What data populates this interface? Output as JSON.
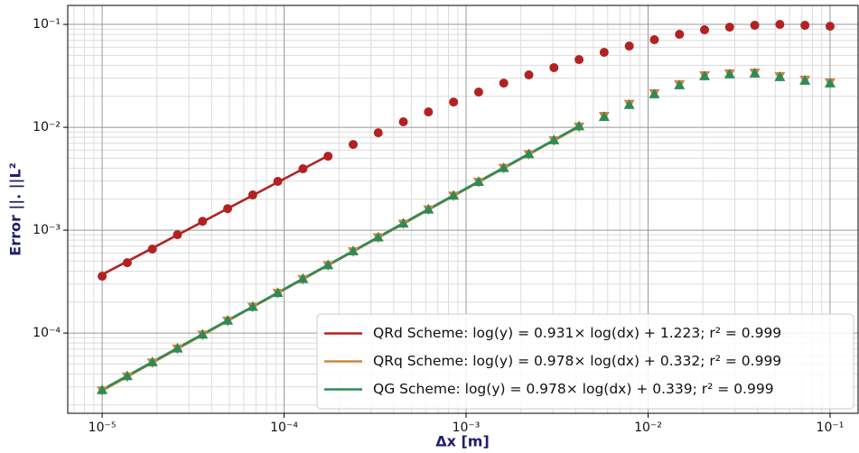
{
  "chart_data": {
    "type": "scatter_fit",
    "x_label": "Δx [m]",
    "y_label": "Error ||. ||L²",
    "log_x": true,
    "log_y": true,
    "grid": true,
    "xlim": [
      6.47e-06,
      0.1426
    ],
    "ylim": [
      1.66e-05,
      0.153
    ],
    "xticks": [
      {
        "value": 1e-05,
        "label": "10⁻⁵"
      },
      {
        "value": 0.0001,
        "label": "10⁻⁴"
      },
      {
        "value": 0.001,
        "label": "10⁻³"
      },
      {
        "value": 0.01,
        "label": "10⁻²"
      },
      {
        "value": 0.1,
        "label": "10⁻¹"
      }
    ],
    "yticks": [
      {
        "value": 0.0001,
        "label": "10⁻⁴"
      },
      {
        "value": 0.001,
        "label": "10⁻³"
      },
      {
        "value": 0.01,
        "label": "10⁻²"
      },
      {
        "value": 0.1,
        "label": "10⁻¹"
      }
    ],
    "xminorticks": [
      7e-06,
      8e-06,
      9e-06,
      2e-05,
      3e-05,
      4e-05,
      5e-05,
      6e-05,
      7e-05,
      8e-05,
      9e-05,
      0.0002,
      0.0003,
      0.0004,
      0.0005,
      0.0006,
      0.0007,
      0.0008,
      0.0009,
      0.002,
      0.003,
      0.004,
      0.005,
      0.006,
      0.007,
      0.008,
      0.009,
      0.02,
      0.03,
      0.04,
      0.05,
      0.06,
      0.07,
      0.08,
      0.09
    ],
    "yminorticks": [
      2e-05,
      3e-05,
      4e-05,
      5e-05,
      6e-05,
      7e-05,
      8e-05,
      9e-05,
      0.0002,
      0.0003,
      0.0004,
      0.0005,
      0.0006,
      0.0007,
      0.0008,
      0.0009,
      0.002,
      0.003,
      0.004,
      0.005,
      0.006,
      0.007,
      0.008,
      0.009,
      0.02,
      0.03,
      0.04,
      0.05,
      0.06,
      0.07,
      0.08,
      0.09
    ],
    "legend": "lower right",
    "x": [
      1e-05,
      1.3738e-05,
      1.8874e-05,
      2.5929e-05,
      3.5622e-05,
      4.8939e-05,
      6.7234e-05,
      9.2367e-05,
      0.0001269,
      0.00017433,
      0.0002395,
      0.00032903,
      0.00045204,
      0.00062102,
      0.00085317,
      0.0011721,
      0.0016103,
      0.0022122,
      0.0030392,
      0.0041753,
      0.0057362,
      0.0078805,
      0.010826,
      0.014874,
      0.020434,
      0.028072,
      0.038566,
      0.052983,
      0.07279,
      0.1
    ],
    "series": [
      {
        "name": "QRd Scheme: log(y) = 0.931× log(dx) + 1.223; r² = 0.999",
        "color": "#b22222",
        "marker": "circle",
        "values": [
          0.000357,
          0.000483,
          0.000655,
          0.000904,
          0.00122,
          0.00162,
          0.0022,
          0.00298,
          0.00395,
          0.00524,
          0.00681,
          0.00885,
          0.0113,
          0.0141,
          0.0176,
          0.022,
          0.0269,
          0.0323,
          0.038,
          0.0455,
          0.0535,
          0.0616,
          0.071,
          0.0801,
          0.0886,
          0.0941,
          0.098,
          0.1,
          0.098,
          0.096
        ],
        "fit_values": [
          0.00037,
          0.000497,
          0.000668,
          0.000898,
          0.001206,
          0.001622,
          0.002181,
          0.002929,
          0.003937,
          0.00529,
          null,
          null,
          null,
          null,
          null,
          null,
          null,
          null,
          null,
          null,
          null,
          null,
          null,
          null,
          null,
          null,
          null,
          null,
          null,
          null
        ]
      },
      {
        "name": "QRq Scheme: log(y) = 0.978× log(dx) + 0.332; r² = 0.999",
        "color": "#cd853f",
        "marker": "triangle-down",
        "values": [
          2.75e-05,
          3.76e-05,
          5.14e-05,
          7.02e-05,
          9.58e-05,
          0.000131,
          0.000179,
          0.000244,
          0.000333,
          0.000454,
          0.00062,
          0.000846,
          0.00115,
          0.00158,
          0.00215,
          0.00293,
          0.004,
          0.00545,
          0.00743,
          0.0101,
          0.0128,
          0.0168,
          0.0213,
          0.026,
          0.0318,
          0.0332,
          0.0338,
          0.0312,
          0.0288,
          0.0271
        ],
        "fit_values": [
          2.75e-05,
          3.76e-05,
          5.14e-05,
          7.02e-05,
          9.58e-05,
          0.000131,
          0.000179,
          0.000244,
          0.000333,
          0.000454,
          0.00062,
          0.000846,
          0.00115,
          0.00158,
          0.00215,
          0.00293,
          0.004,
          0.00545,
          0.00743,
          0.0101,
          null,
          null,
          null,
          null,
          null,
          null,
          null,
          null,
          null,
          null
        ]
      },
      {
        "name": "QG Scheme: log(y) = 0.978× log(dx) + 0.339; r² = 0.999",
        "color": "#2e8b57",
        "marker": "triangle-up",
        "values": [
          2.81e-05,
          3.84e-05,
          5.24e-05,
          7.14e-05,
          9.74e-05,
          0.000133,
          0.000181,
          0.000247,
          0.000338,
          0.00046,
          0.000628,
          0.000857,
          0.00117,
          0.0016,
          0.00218,
          0.00297,
          0.00405,
          0.00552,
          0.00753,
          0.0103,
          0.0127,
          0.0166,
          0.0211,
          0.0258,
          0.0316,
          0.033,
          0.0336,
          0.031,
          0.0286,
          0.0269
        ],
        "fit_values": [
          2.81e-05,
          3.84e-05,
          5.24e-05,
          7.14e-05,
          9.74e-05,
          0.000133,
          0.000181,
          0.000247,
          0.000338,
          0.00046,
          0.000628,
          0.000857,
          0.00117,
          0.0016,
          0.00218,
          0.00297,
          0.00405,
          0.00552,
          0.00753,
          0.0103,
          null,
          null,
          null,
          null,
          null,
          null,
          null,
          null,
          null,
          null
        ]
      }
    ]
  }
}
